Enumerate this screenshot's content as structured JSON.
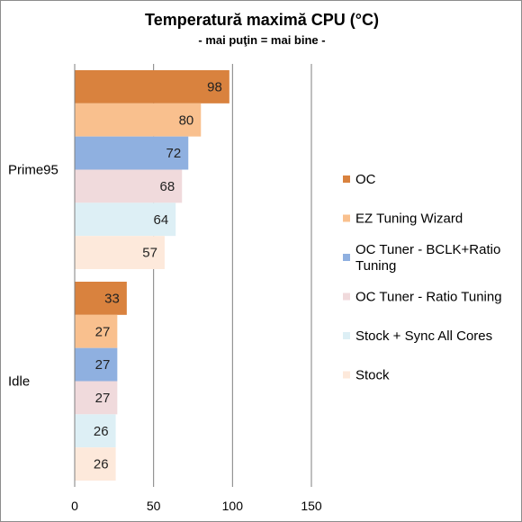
{
  "chart_data": {
    "type": "bar",
    "orientation": "horizontal",
    "title": "Temperatură maximă CPU (°C)",
    "subtitle": "- mai puţin = mai bine -",
    "categories": [
      "Prime95",
      "Idle"
    ],
    "series": [
      {
        "name": "OC",
        "color": "#D9823E",
        "values": [
          98,
          33
        ]
      },
      {
        "name": "EZ Tuning Wizard",
        "color": "#F9C08E",
        "values": [
          80,
          27
        ]
      },
      {
        "name": "OC Tuner - BCLK+Ratio Tuning",
        "color": "#8FB0E0",
        "values": [
          72,
          27
        ]
      },
      {
        "name": "OC Tuner - Ratio Tuning",
        "color": "#F0DADC",
        "values": [
          68,
          27
        ]
      },
      {
        "name": "Stock + Sync All Cores",
        "color": "#DDEFF5",
        "values": [
          64,
          26
        ]
      },
      {
        "name": "Stock",
        "color": "#FDE9DB",
        "values": [
          57,
          26
        ]
      }
    ],
    "xlim": [
      0,
      150
    ],
    "xticks": [
      0,
      50,
      100,
      150
    ],
    "grid": true,
    "legend_position": "right"
  }
}
